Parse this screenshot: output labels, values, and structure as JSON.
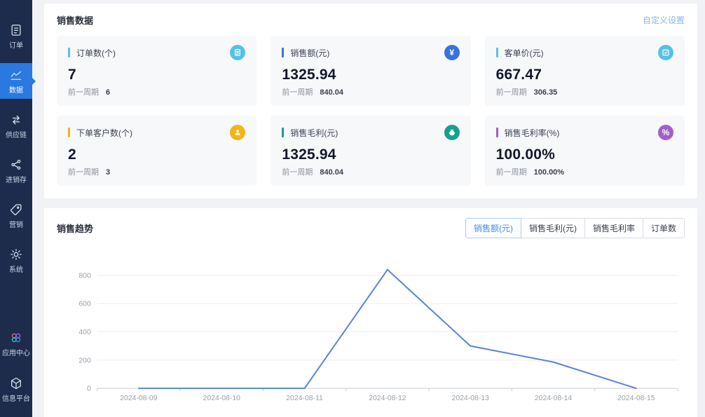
{
  "sidebar": {
    "items": [
      {
        "name": "orders",
        "label": "订单",
        "icon": "order-icon",
        "active": false
      },
      {
        "name": "data",
        "label": "数据",
        "icon": "data-chart-icon",
        "active": true
      },
      {
        "name": "supply-chain",
        "label": "供应链",
        "icon": "supply-chain-icon",
        "active": false
      },
      {
        "name": "inventory",
        "label": "进销存",
        "icon": "inventory-icon",
        "active": false
      },
      {
        "name": "marketing",
        "label": "营销",
        "icon": "marketing-tag-icon",
        "active": false
      },
      {
        "name": "system",
        "label": "系统",
        "icon": "system-gear-icon",
        "active": false
      }
    ],
    "bottom_items": [
      {
        "name": "app-center",
        "label": "应用中心",
        "icon": "app-center-icon"
      },
      {
        "name": "info-platform",
        "label": "信息平台",
        "icon": "info-platform-icon"
      }
    ]
  },
  "sales_data": {
    "title": "销售数据",
    "settings_link": "自定义设置",
    "prev_label": "前一周期",
    "cards": [
      {
        "name": "order-count",
        "title": "订单数(个)",
        "value": "7",
        "prev": "6",
        "color": "#56c1e8",
        "icon": "order-doc-icon"
      },
      {
        "name": "sales-amount",
        "title": "销售额(元)",
        "value": "1325.94",
        "prev": "840.04",
        "color": "#3a72dd",
        "icon": "yuan-icon"
      },
      {
        "name": "avg-price",
        "title": "客单价(元)",
        "value": "667.47",
        "prev": "306.35",
        "color": "#56c1e8",
        "icon": "check-card-icon"
      },
      {
        "name": "customer-count",
        "title": "下单客户数(个)",
        "value": "2",
        "prev": "3",
        "color": "#f3b516",
        "icon": "person-icon"
      },
      {
        "name": "gross-profit",
        "title": "销售毛利(元)",
        "value": "1325.94",
        "prev": "840.04",
        "color": "#17a08d",
        "icon": "money-bag-icon"
      },
      {
        "name": "profit-rate",
        "title": "销售毛利率(%)",
        "value": "100.00%",
        "prev": "100.00%",
        "color": "#a25fc9",
        "icon": "percent-icon"
      }
    ]
  },
  "sales_trend": {
    "title": "销售趋势",
    "tabs": [
      {
        "name": "sales-amount",
        "label": "销售额(元)",
        "active": true
      },
      {
        "name": "gross-profit",
        "label": "销售毛利(元)",
        "active": false
      },
      {
        "name": "profit-rate",
        "label": "销售毛利率",
        "active": false
      },
      {
        "name": "order-count",
        "label": "订单数",
        "active": false
      }
    ]
  },
  "chart_data": {
    "type": "line",
    "title": "销售趋势",
    "x": [
      "2024-08-09",
      "2024-08-10",
      "2024-08-11",
      "2024-08-12",
      "2024-08-13",
      "2024-08-14",
      "2024-08-15"
    ],
    "series": [
      {
        "name": "销售额(元)",
        "values": [
          0,
          0,
          0,
          840,
          300,
          186,
          0
        ]
      }
    ],
    "xlabel": "",
    "ylabel": "",
    "ylim": [
      0,
      850
    ],
    "yticks": [
      0,
      200,
      400,
      600,
      800
    ],
    "grid": true,
    "legend_position": "none",
    "line_color": "#5b84d6"
  }
}
